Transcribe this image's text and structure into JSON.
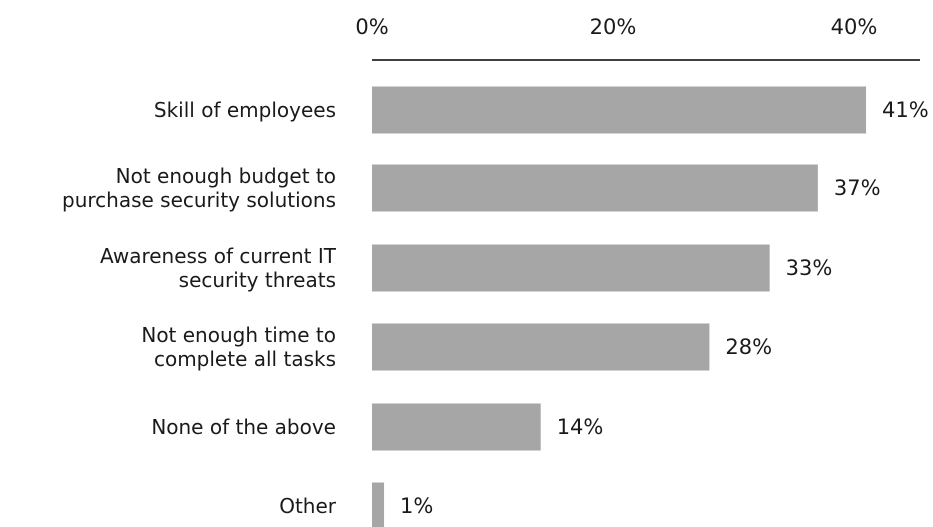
{
  "chart_data": {
    "type": "bar",
    "orientation": "horizontal",
    "title": "",
    "xlabel": "",
    "ylabel": "",
    "xlim": [
      0,
      40
    ],
    "xticks": [
      {
        "value": 0,
        "label": "0%"
      },
      {
        "value": 20,
        "label": "20%"
      },
      {
        "value": 40,
        "label": "40%"
      }
    ],
    "grid": false,
    "legend": "none",
    "bar_color": "#a6a6a6",
    "categories": [
      [
        "Skill of employees"
      ],
      [
        "Not enough budget to",
        "purchase security solutions"
      ],
      [
        "Awareness of current IT",
        "security threats"
      ],
      [
        "Not enough time to",
        "complete all tasks"
      ],
      [
        "None of the above"
      ],
      [
        "Other"
      ]
    ],
    "values": [
      41,
      37,
      33,
      28,
      14,
      1
    ],
    "value_labels": [
      "41%",
      "37%",
      "33%",
      "28%",
      "14%",
      "1%"
    ]
  }
}
